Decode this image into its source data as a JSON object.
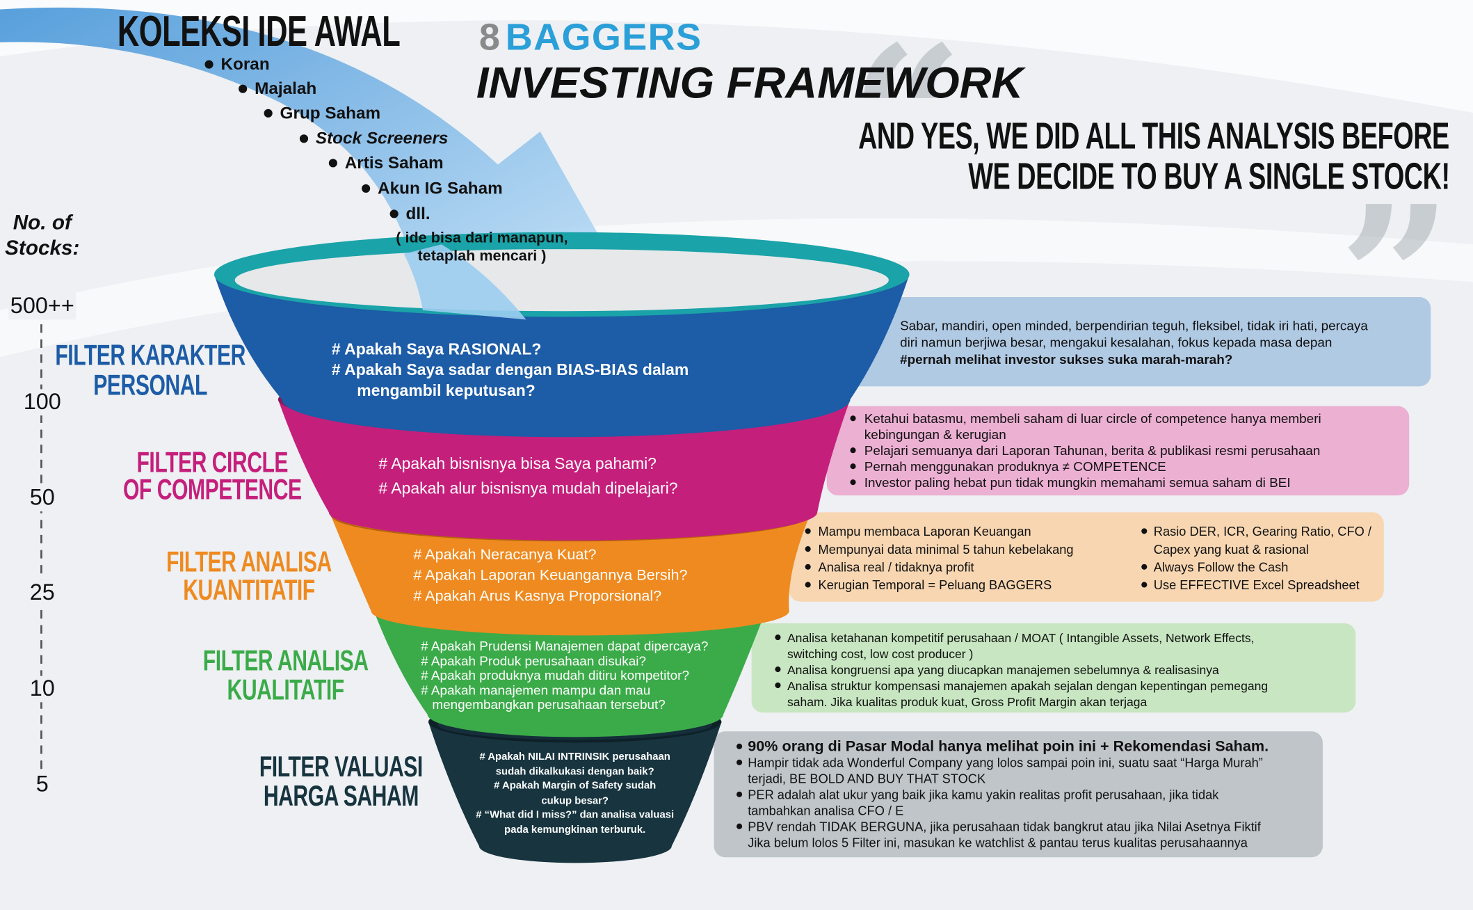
{
  "header": {
    "brand_number": "8",
    "brand_name": "BAGGERS",
    "title": "INVESTING FRAMEWORK",
    "quote": [
      "AND YES, WE DID ALL THIS ANALYSIS BEFORE",
      "WE DECIDE TO BUY A SINGLE STOCK!"
    ]
  },
  "ideas": {
    "title": "KOLEKSI IDE AWAL",
    "items": [
      "Koran",
      "Majalah",
      "Grup Saham",
      "Stock Screeners",
      "Artis Saham",
      "Akun IG Saham",
      "dll."
    ],
    "note": [
      "( ide bisa dari manapun,",
      "tetaplah mencari )"
    ]
  },
  "axis": {
    "label": [
      "No. of",
      "Stocks:"
    ],
    "ticks": [
      "500++",
      "100",
      "50",
      "25",
      "10",
      "5"
    ]
  },
  "filters": [
    {
      "name": [
        "FILTER KARAKTER",
        "PERSONAL"
      ],
      "questions": [
        "#  Apakah Saya RASIONAL?",
        "#  Apakah Saya sadar dengan BIAS-BIAS dalam",
        "mengambil keputusan?"
      ],
      "notes": [
        "Sabar, mandiri, open minded, berpendirian teguh, fleksibel, tidak iri hati, percaya",
        "diri namun berjiwa besar, mengakui kesalahan, fokus kepada masa depan",
        "#pernah melihat investor sukses suka marah-marah?"
      ]
    },
    {
      "name": [
        "FILTER CIRCLE",
        "OF COMPETENCE"
      ],
      "questions": [
        "# Apakah bisnisnya bisa Saya pahami?",
        "# Apakah alur bisnisnya mudah dipelajari?"
      ],
      "notes": [
        [
          "Ketahui batasmu, membeli saham di luar circle of competence hanya memberi",
          "kebingungan & kerugian"
        ],
        [
          "Pelajari semuanya dari Laporan Tahunan, berita & publikasi resmi perusahaan"
        ],
        [
          "Pernah menggunakan produknya ≠ COMPETENCE"
        ],
        [
          "Investor paling hebat pun tidak mungkin memahami semua saham di BEI"
        ]
      ]
    },
    {
      "name": [
        "FILTER ANALISA",
        "KUANTITATIF"
      ],
      "questions": [
        "# Apakah Neracanya Kuat?",
        "# Apakah Laporan Keuangannya Bersih?",
        "# Apakah Arus Kasnya Proporsional?"
      ],
      "notes": [
        [
          "Mampu membaca Laporan Keuangan"
        ],
        [
          "Mempunyai data minimal 5 tahun kebelakang"
        ],
        [
          "Analisa real / tidaknya profit"
        ],
        [
          "Kerugian Temporal = Peluang BAGGERS"
        ]
      ],
      "notes_right": [
        [
          "Rasio DER, ICR, Gearing Ratio, CFO /",
          "Capex yang kuat & rasional"
        ],
        [
          "Always Follow the Cash"
        ],
        [
          "Use EFFECTIVE Excel Spreadsheet"
        ]
      ]
    },
    {
      "name": [
        "FILTER ANALISA",
        "KUALITATIF"
      ],
      "questions": [
        "# Apakah Prudensi Manajemen dapat dipercaya?",
        "# Apakah Produk perusahaan disukai?",
        "# Apakah produknya mudah ditiru kompetitor?",
        "# Apakah manajemen mampu dan mau",
        "mengembangkan perusahaan tersebut?"
      ],
      "notes": [
        [
          "Analisa ketahanan kompetitif perusahaan / MOAT ( Intangible Assets, Network Effects,",
          "switching cost, low cost producer )"
        ],
        [
          "Analisa kongruensi apa yang diucapkan manajemen sebelumnya & realisasinya"
        ],
        [
          "Analisa struktur kompensasi manajemen apakah sejalan dengan kepentingan pemegang",
          "saham. Jika kualitas produk kuat, Gross Profit Margin akan terjaga"
        ]
      ]
    },
    {
      "name": [
        "FILTER VALUASI",
        "HARGA SAHAM"
      ],
      "questions": [
        "# Apakah NILAI INTRINSIK perusahaan",
        "sudah dikalkukasi dengan baik?",
        "# Apakah Margin of Safety sudah",
        "cukup besar?",
        "# “What did I miss?” dan analisa valuasi",
        "pada kemungkinan terburuk."
      ],
      "notes": [
        [
          "90% orang di Pasar Modal hanya melihat poin ini + Rekomendasi Saham."
        ],
        [
          "Hampir tidak ada Wonderful Company yang lolos sampai poin ini, suatu saat “Harga Murah”",
          "terjadi, BE BOLD AND BUY THAT STOCK"
        ],
        [
          "PER adalah alat ukur yang baik jika kamu yakin realitas profit perusahaan, jika tidak",
          "tambahkan analisa CFO / E"
        ],
        [
          "PBV rendah TIDAK BERGUNA, jika perusahaan tidak bangkrut atau jika Nilai Asetnya Fiktif",
          "Jika belum lolos 5 Filter ini, masukan ke watchlist & pantau terus kualitas perusahaannya"
        ]
      ]
    }
  ]
}
